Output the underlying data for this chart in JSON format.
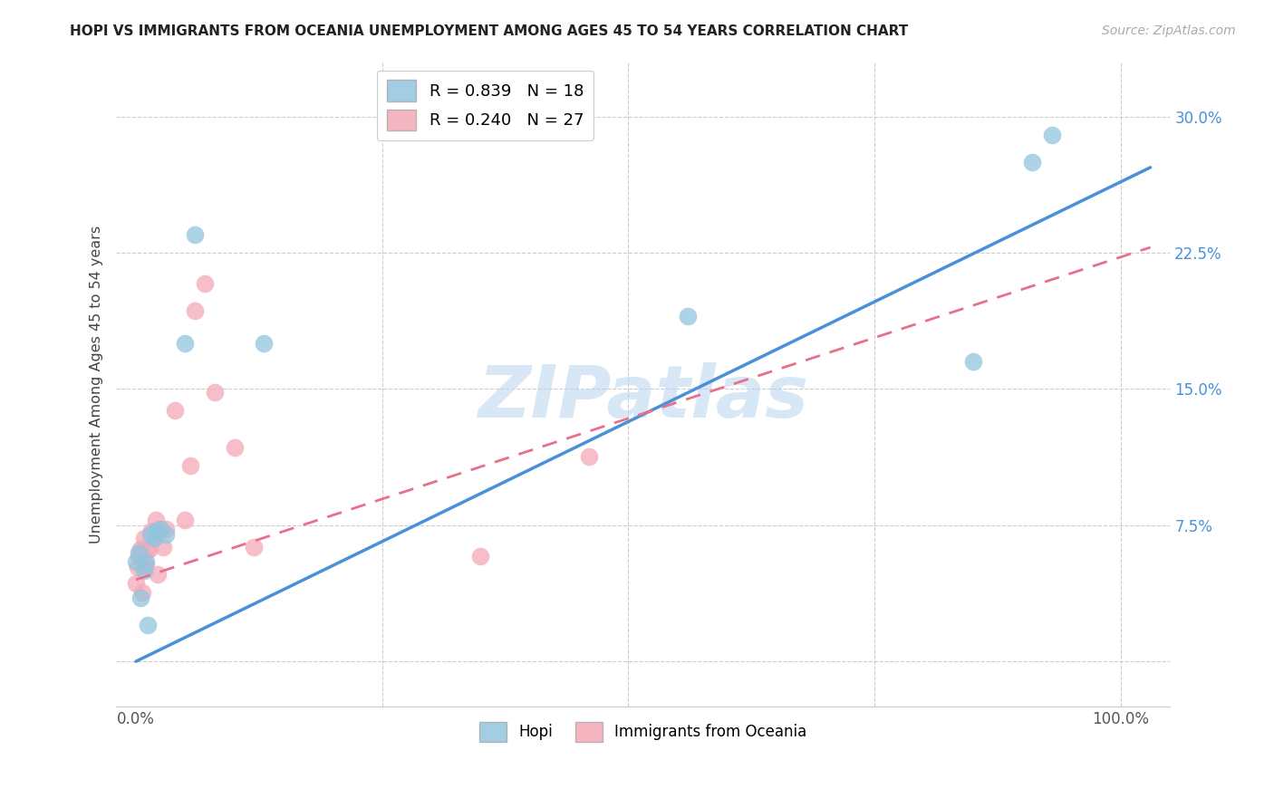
{
  "title": "HOPI VS IMMIGRANTS FROM OCEANIA UNEMPLOYMENT AMONG AGES 45 TO 54 YEARS CORRELATION CHART",
  "source": "Source: ZipAtlas.com",
  "ylabel": "Unemployment Among Ages 45 to 54 years",
  "xlim": [
    -0.02,
    1.05
  ],
  "ylim": [
    -0.025,
    0.33
  ],
  "hopi_R": 0.839,
  "hopi_N": 18,
  "oceania_R": 0.24,
  "oceania_N": 27,
  "hopi_color": "#92c5de",
  "oceania_color": "#f4a9b8",
  "hopi_line_color": "#4a90d9",
  "oceania_line_color": "#e8708a",
  "watermark": "ZIPatlas",
  "hopi_x": [
    0.0,
    0.003,
    0.005,
    0.008,
    0.01,
    0.012,
    0.015,
    0.018,
    0.02,
    0.025,
    0.03,
    0.05,
    0.06,
    0.13,
    0.56,
    0.85,
    0.91,
    0.93
  ],
  "hopi_y": [
    0.055,
    0.06,
    0.035,
    0.05,
    0.055,
    0.02,
    0.07,
    0.068,
    0.072,
    0.073,
    0.07,
    0.175,
    0.235,
    0.175,
    0.19,
    0.165,
    0.275,
    0.29
  ],
  "oceania_x": [
    0.0,
    0.002,
    0.003,
    0.005,
    0.006,
    0.008,
    0.008,
    0.01,
    0.012,
    0.014,
    0.016,
    0.018,
    0.02,
    0.022,
    0.025,
    0.028,
    0.03,
    0.04,
    0.05,
    0.055,
    0.06,
    0.07,
    0.08,
    0.1,
    0.12,
    0.35,
    0.46
  ],
  "oceania_y": [
    0.043,
    0.052,
    0.058,
    0.062,
    0.038,
    0.053,
    0.068,
    0.053,
    0.062,
    0.062,
    0.072,
    0.068,
    0.078,
    0.048,
    0.073,
    0.063,
    0.073,
    0.138,
    0.078,
    0.108,
    0.193,
    0.208,
    0.148,
    0.118,
    0.063,
    0.058,
    0.113
  ],
  "hopi_line_x0": 0.0,
  "hopi_line_x1": 1.03,
  "hopi_line_y0": 0.0,
  "hopi_line_y1": 0.272,
  "oceania_line_x0": 0.0,
  "oceania_line_x1": 1.03,
  "oceania_line_y0": 0.045,
  "oceania_line_y1": 0.228,
  "ytick_positions": [
    0.0,
    0.075,
    0.15,
    0.225,
    0.3
  ],
  "ytick_labels": [
    "",
    "7.5%",
    "15.0%",
    "22.5%",
    "30.0%"
  ],
  "xtick_positions": [
    0.0,
    1.0
  ],
  "xtick_labels": [
    "0.0%",
    "100.0%"
  ],
  "ytick_color": "#4a90d9",
  "xtick_color": "#555555"
}
